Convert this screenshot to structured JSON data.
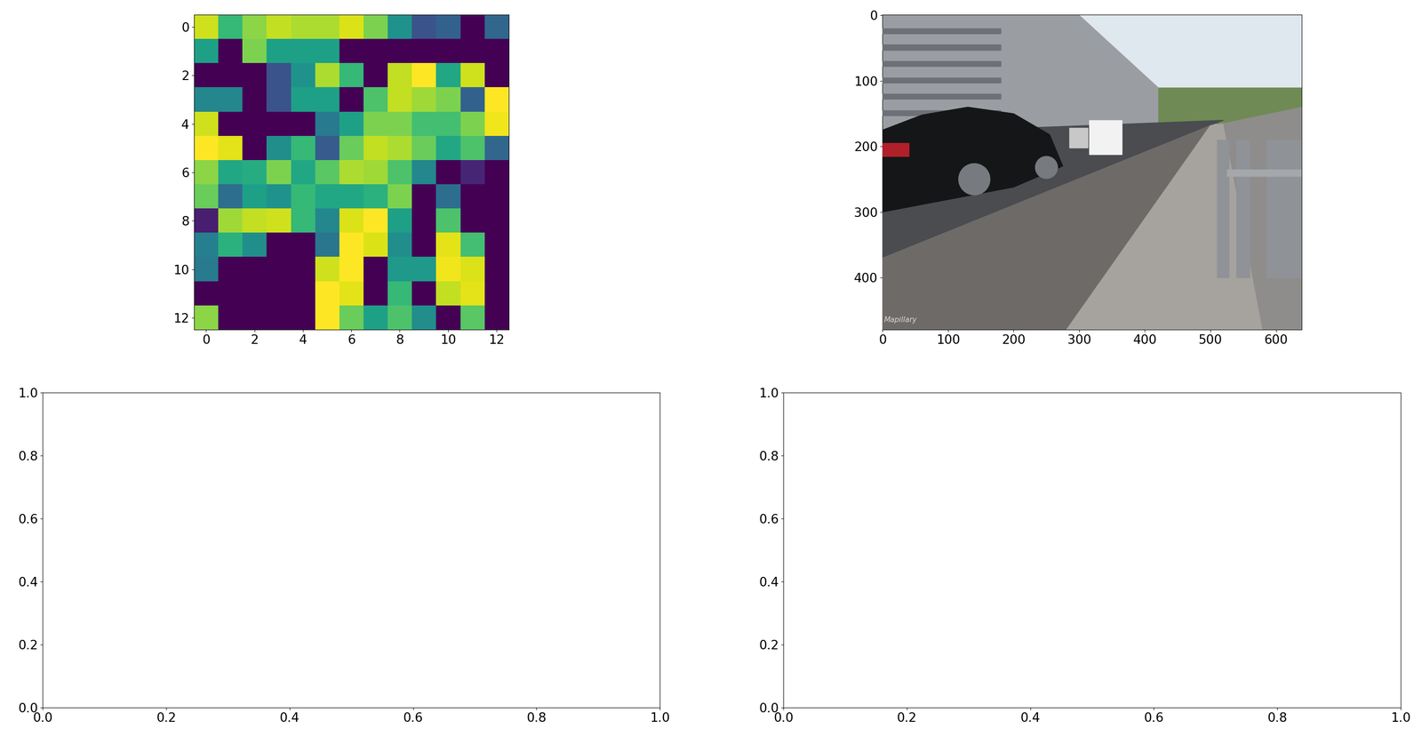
{
  "chart_data": [
    {
      "type": "heatmap",
      "cells": [
        [
          0.9,
          0.65,
          0.8,
          0.88,
          0.85,
          0.85,
          0.92,
          0.78,
          0.5,
          0.25,
          0.3,
          0,
          0.32
        ],
        [
          0.55,
          0,
          0.78,
          0.55,
          0.55,
          0.55,
          0,
          0,
          0,
          0,
          0,
          0,
          0
        ],
        [
          0,
          0,
          0,
          0.25,
          0.5,
          0.85,
          0.65,
          0,
          0.88,
          0.97,
          0.58,
          0.9,
          0
        ],
        [
          0.45,
          0.45,
          0,
          0.25,
          0.55,
          0.55,
          0,
          0.7,
          0.88,
          0.83,
          0.78,
          0.3,
          0.97
        ],
        [
          0.9,
          0,
          0,
          0,
          0,
          0.4,
          0.55,
          0.78,
          0.78,
          0.68,
          0.68,
          0.78,
          0.95
        ],
        [
          0.97,
          0.93,
          0,
          0.48,
          0.65,
          0.28,
          0.75,
          0.88,
          0.85,
          0.75,
          0.58,
          0.7,
          0.32
        ],
        [
          0.8,
          0.58,
          0.6,
          0.78,
          0.58,
          0.72,
          0.85,
          0.83,
          0.7,
          0.45,
          0,
          0.1,
          0
        ],
        [
          0.75,
          0.35,
          0.55,
          0.5,
          0.65,
          0.58,
          0.58,
          0.62,
          0.78,
          0,
          0.35,
          0,
          0
        ],
        [
          0.08,
          0.83,
          0.88,
          0.9,
          0.65,
          0.45,
          0.92,
          0.97,
          0.55,
          0,
          0.7,
          0,
          0
        ],
        [
          0.42,
          0.62,
          0.48,
          0,
          0,
          0.38,
          0.97,
          0.92,
          0.48,
          0,
          0.93,
          0.68,
          0
        ],
        [
          0.4,
          0,
          0,
          0,
          0,
          0.9,
          0.97,
          0,
          0.52,
          0.52,
          0.95,
          0.92,
          0
        ],
        [
          0,
          0,
          0,
          0,
          0,
          0.97,
          0.93,
          0,
          0.65,
          0,
          0.88,
          0.93,
          0
        ],
        [
          0.8,
          0,
          0,
          0,
          0,
          0.97,
          0.75,
          0.55,
          0.7,
          0.48,
          0,
          0.72,
          0
        ]
      ],
      "xlim": [
        -0.5,
        12.5
      ],
      "ylim": [
        12.5,
        -0.5
      ],
      "xticks": [
        0,
        2,
        4,
        6,
        8,
        10,
        12
      ],
      "yticks": [
        0,
        2,
        4,
        6,
        8,
        10,
        12
      ]
    },
    {
      "type": "image",
      "annotations": [
        "Mapillary"
      ],
      "xlim": [
        -0.5,
        639.5
      ],
      "ylim": [
        479.5,
        -0.5
      ],
      "xticks": [
        0,
        100,
        200,
        300,
        400,
        500,
        600
      ],
      "yticks": [
        0,
        100,
        200,
        300,
        400
      ]
    },
    {
      "type": "empty",
      "xlim": [
        0,
        1
      ],
      "ylim": [
        0,
        1
      ],
      "xticks": [
        {
          "value": 0,
          "label": "0.0"
        },
        {
          "value": 0.2,
          "label": "0.2"
        },
        {
          "value": 0.4,
          "label": "0.4"
        },
        {
          "value": 0.6,
          "label": "0.6"
        },
        {
          "value": 0.8,
          "label": "0.8"
        },
        {
          "value": 1,
          "label": "1.0"
        }
      ],
      "yticks": [
        {
          "value": 0,
          "label": "0.0"
        },
        {
          "value": 0.2,
          "label": "0.2"
        },
        {
          "value": 0.4,
          "label": "0.4"
        },
        {
          "value": 0.6,
          "label": "0.6"
        },
        {
          "value": 0.8,
          "label": "0.8"
        },
        {
          "value": 1,
          "label": "1.0"
        }
      ]
    },
    {
      "type": "empty",
      "xlim": [
        0,
        1
      ],
      "ylim": [
        0,
        1
      ],
      "xticks": [
        {
          "value": 0,
          "label": "0.0"
        },
        {
          "value": 0.2,
          "label": "0.2"
        },
        {
          "value": 0.4,
          "label": "0.4"
        },
        {
          "value": 0.6,
          "label": "0.6"
        },
        {
          "value": 0.8,
          "label": "0.8"
        },
        {
          "value": 1,
          "label": "1.0"
        }
      ],
      "yticks": [
        {
          "value": 0,
          "label": "0.0"
        },
        {
          "value": 0.2,
          "label": "0.2"
        },
        {
          "value": 0.4,
          "label": "0.4"
        },
        {
          "value": 0.6,
          "label": "0.6"
        },
        {
          "value": 0.8,
          "label": "0.8"
        },
        {
          "value": 1,
          "label": "1.0"
        }
      ]
    }
  ]
}
